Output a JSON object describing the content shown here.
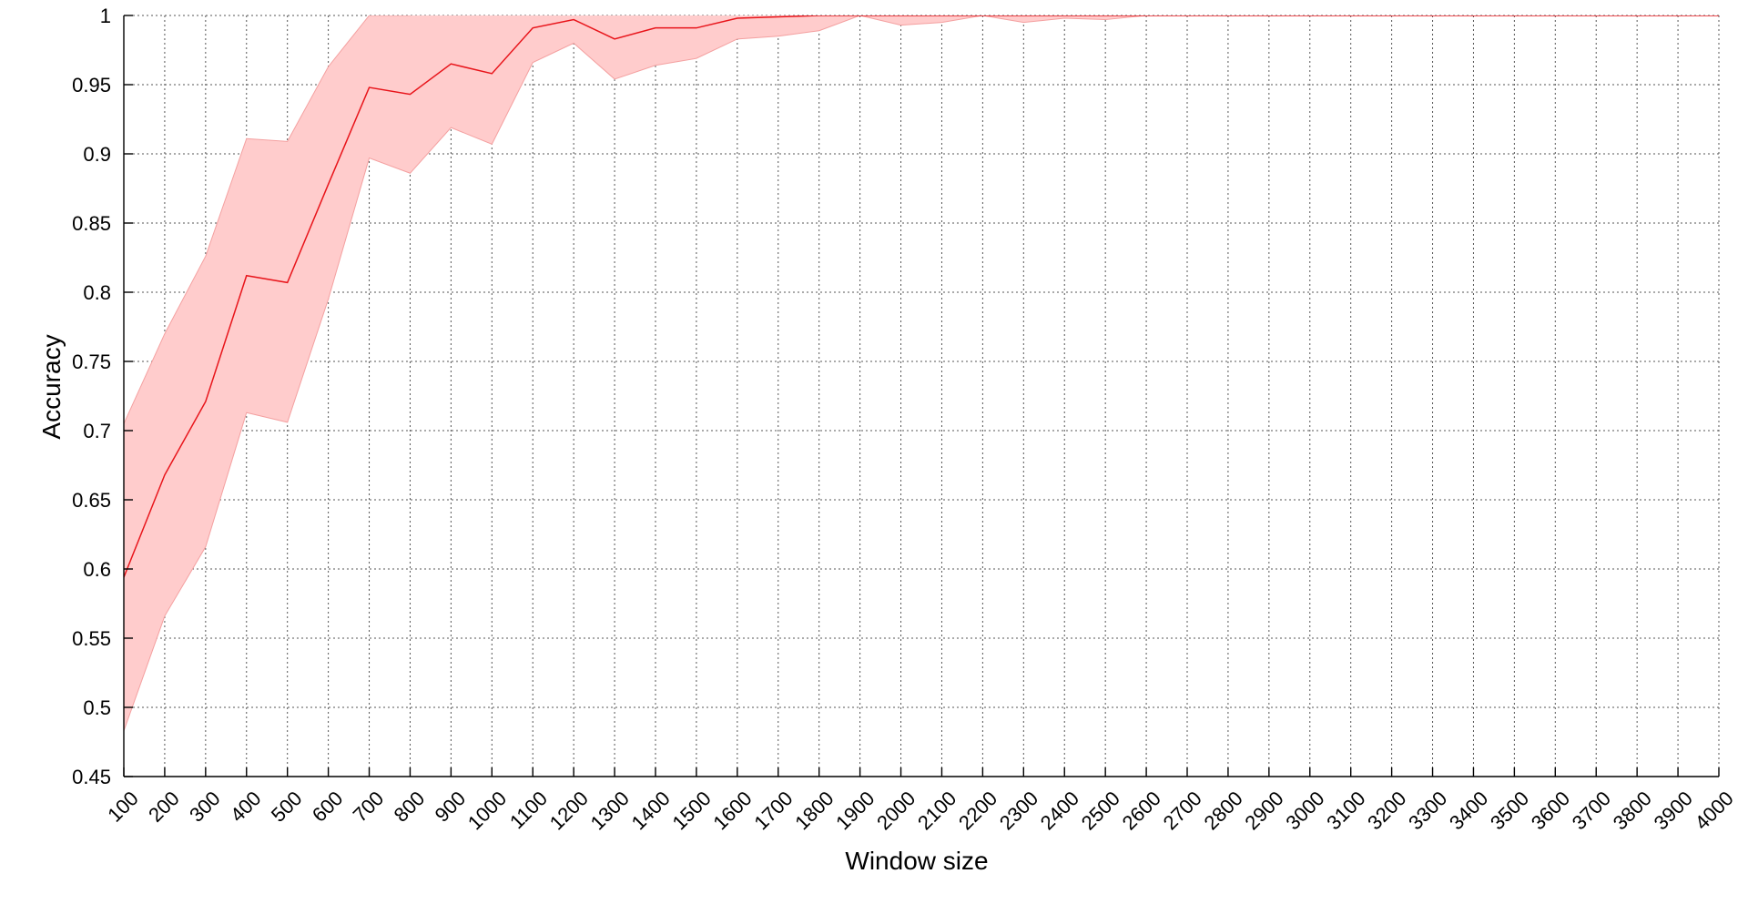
{
  "chart_data": {
    "type": "line",
    "xlabel": "Window size",
    "ylabel": "Accuracy",
    "xlim": [
      100,
      4000
    ],
    "ylim": [
      0.45,
      1.0
    ],
    "grid": true,
    "x": [
      100,
      200,
      300,
      400,
      500,
      600,
      700,
      800,
      900,
      1000,
      1100,
      1200,
      1300,
      1400,
      1500,
      1600,
      1700,
      1800,
      1900,
      2000,
      2100,
      2200,
      2300,
      2400,
      2500,
      2600,
      2700,
      2800,
      2900,
      3000,
      3100,
      3200,
      3300,
      3400,
      3500,
      3600,
      3700,
      3800,
      3900,
      4000
    ],
    "x_ticks": [
      "100",
      "200",
      "300",
      "400",
      "500",
      "600",
      "700",
      "800",
      "900",
      "1000",
      "1100",
      "1200",
      "1300",
      "1400",
      "1500",
      "1600",
      "1700",
      "1800",
      "1900",
      "2000",
      "2100",
      "2200",
      "2300",
      "2400",
      "2500",
      "2600",
      "2700",
      "2800",
      "2900",
      "3000",
      "3100",
      "3200",
      "3300",
      "3400",
      "3500",
      "3600",
      "3700",
      "3800",
      "3900",
      "4000"
    ],
    "y_ticks": [
      "0.45",
      "0.5",
      "0.55",
      "0.6",
      "0.65",
      "0.7",
      "0.75",
      "0.8",
      "0.85",
      "0.9",
      "0.95",
      "1"
    ],
    "series": [
      {
        "color": "#e8141a",
        "band_color": "#ffcccc",
        "band_edge_color": "#f4a0a0",
        "values": [
          0.594,
          0.668,
          0.721,
          0.812,
          0.807,
          0.878,
          0.948,
          0.943,
          0.965,
          0.958,
          0.991,
          0.997,
          0.983,
          0.991,
          0.991,
          0.998,
          0.999,
          1.0,
          1.0,
          1.0,
          1.0,
          1.0,
          1.0,
          1.0,
          1.0,
          1.0,
          1.0,
          1.0,
          1.0,
          1.0,
          1.0,
          1.0,
          1.0,
          1.0,
          1.0,
          1.0,
          1.0,
          1.0,
          1.0,
          1.0
        ],
        "upper": [
          0.705,
          0.77,
          0.826,
          0.911,
          0.909,
          0.963,
          1.0,
          1.0,
          1.012,
          1.009,
          1.016,
          1.016,
          1.012,
          1.014,
          1.014,
          1.014,
          1.014,
          1.012,
          1.0,
          1.007,
          1.006,
          1.0,
          1.006,
          1.003,
          1.004,
          1.0,
          1.0,
          1.0,
          1.0,
          1.0,
          1.0,
          1.0,
          1.0,
          1.0,
          1.0,
          1.0,
          1.0,
          1.0,
          1.0,
          1.0
        ],
        "lower": [
          0.483,
          0.566,
          0.616,
          0.713,
          0.706,
          0.795,
          0.897,
          0.886,
          0.919,
          0.907,
          0.966,
          0.98,
          0.954,
          0.964,
          0.969,
          0.983,
          0.985,
          0.989,
          1.0,
          0.993,
          0.995,
          1.0,
          0.995,
          0.998,
          0.997,
          1.0,
          1.0,
          1.0,
          1.0,
          1.0,
          1.0,
          1.0,
          1.0,
          1.0,
          1.0,
          1.0,
          1.0,
          1.0,
          1.0,
          1.0
        ]
      }
    ]
  }
}
